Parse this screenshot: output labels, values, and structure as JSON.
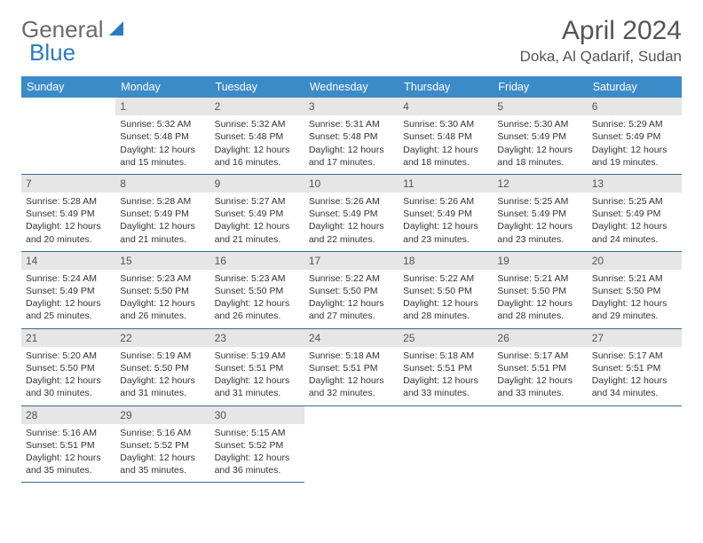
{
  "logo": {
    "text1": "General",
    "text2": "Blue"
  },
  "title": "April 2024",
  "location": "Doka, Al Qadarif, Sudan",
  "colors": {
    "header_bg": "#3b8bc9",
    "header_text": "#ffffff",
    "daynum_bg": "#e6e6e6",
    "rule": "#3b6a8e",
    "logo_gray": "#6a6a6a",
    "logo_blue": "#2b7bbf"
  },
  "weekdays": [
    "Sunday",
    "Monday",
    "Tuesday",
    "Wednesday",
    "Thursday",
    "Friday",
    "Saturday"
  ],
  "start_offset": 1,
  "days": [
    {
      "n": 1,
      "sunrise": "5:32 AM",
      "sunset": "5:48 PM",
      "daylight": "12 hours and 15 minutes."
    },
    {
      "n": 2,
      "sunrise": "5:32 AM",
      "sunset": "5:48 PM",
      "daylight": "12 hours and 16 minutes."
    },
    {
      "n": 3,
      "sunrise": "5:31 AM",
      "sunset": "5:48 PM",
      "daylight": "12 hours and 17 minutes."
    },
    {
      "n": 4,
      "sunrise": "5:30 AM",
      "sunset": "5:48 PM",
      "daylight": "12 hours and 18 minutes."
    },
    {
      "n": 5,
      "sunrise": "5:30 AM",
      "sunset": "5:49 PM",
      "daylight": "12 hours and 18 minutes."
    },
    {
      "n": 6,
      "sunrise": "5:29 AM",
      "sunset": "5:49 PM",
      "daylight": "12 hours and 19 minutes."
    },
    {
      "n": 7,
      "sunrise": "5:28 AM",
      "sunset": "5:49 PM",
      "daylight": "12 hours and 20 minutes."
    },
    {
      "n": 8,
      "sunrise": "5:28 AM",
      "sunset": "5:49 PM",
      "daylight": "12 hours and 21 minutes."
    },
    {
      "n": 9,
      "sunrise": "5:27 AM",
      "sunset": "5:49 PM",
      "daylight": "12 hours and 21 minutes."
    },
    {
      "n": 10,
      "sunrise": "5:26 AM",
      "sunset": "5:49 PM",
      "daylight": "12 hours and 22 minutes."
    },
    {
      "n": 11,
      "sunrise": "5:26 AM",
      "sunset": "5:49 PM",
      "daylight": "12 hours and 23 minutes."
    },
    {
      "n": 12,
      "sunrise": "5:25 AM",
      "sunset": "5:49 PM",
      "daylight": "12 hours and 23 minutes."
    },
    {
      "n": 13,
      "sunrise": "5:25 AM",
      "sunset": "5:49 PM",
      "daylight": "12 hours and 24 minutes."
    },
    {
      "n": 14,
      "sunrise": "5:24 AM",
      "sunset": "5:49 PM",
      "daylight": "12 hours and 25 minutes."
    },
    {
      "n": 15,
      "sunrise": "5:23 AM",
      "sunset": "5:50 PM",
      "daylight": "12 hours and 26 minutes."
    },
    {
      "n": 16,
      "sunrise": "5:23 AM",
      "sunset": "5:50 PM",
      "daylight": "12 hours and 26 minutes."
    },
    {
      "n": 17,
      "sunrise": "5:22 AM",
      "sunset": "5:50 PM",
      "daylight": "12 hours and 27 minutes."
    },
    {
      "n": 18,
      "sunrise": "5:22 AM",
      "sunset": "5:50 PM",
      "daylight": "12 hours and 28 minutes."
    },
    {
      "n": 19,
      "sunrise": "5:21 AM",
      "sunset": "5:50 PM",
      "daylight": "12 hours and 28 minutes."
    },
    {
      "n": 20,
      "sunrise": "5:21 AM",
      "sunset": "5:50 PM",
      "daylight": "12 hours and 29 minutes."
    },
    {
      "n": 21,
      "sunrise": "5:20 AM",
      "sunset": "5:50 PM",
      "daylight": "12 hours and 30 minutes."
    },
    {
      "n": 22,
      "sunrise": "5:19 AM",
      "sunset": "5:50 PM",
      "daylight": "12 hours and 31 minutes."
    },
    {
      "n": 23,
      "sunrise": "5:19 AM",
      "sunset": "5:51 PM",
      "daylight": "12 hours and 31 minutes."
    },
    {
      "n": 24,
      "sunrise": "5:18 AM",
      "sunset": "5:51 PM",
      "daylight": "12 hours and 32 minutes."
    },
    {
      "n": 25,
      "sunrise": "5:18 AM",
      "sunset": "5:51 PM",
      "daylight": "12 hours and 33 minutes."
    },
    {
      "n": 26,
      "sunrise": "5:17 AM",
      "sunset": "5:51 PM",
      "daylight": "12 hours and 33 minutes."
    },
    {
      "n": 27,
      "sunrise": "5:17 AM",
      "sunset": "5:51 PM",
      "daylight": "12 hours and 34 minutes."
    },
    {
      "n": 28,
      "sunrise": "5:16 AM",
      "sunset": "5:51 PM",
      "daylight": "12 hours and 35 minutes."
    },
    {
      "n": 29,
      "sunrise": "5:16 AM",
      "sunset": "5:52 PM",
      "daylight": "12 hours and 35 minutes."
    },
    {
      "n": 30,
      "sunrise": "5:15 AM",
      "sunset": "5:52 PM",
      "daylight": "12 hours and 36 minutes."
    }
  ],
  "labels": {
    "sunrise": "Sunrise:",
    "sunset": "Sunset:",
    "daylight": "Daylight:"
  }
}
